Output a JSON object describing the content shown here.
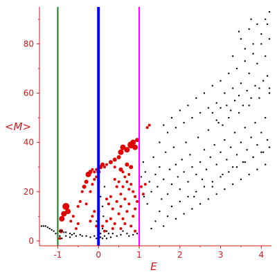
{
  "chart_data": {
    "type": "scatter",
    "title": "",
    "xlabel": "E",
    "ylabel": "<M>",
    "xlim": [
      -1.45,
      4.25
    ],
    "ylim": [
      -2,
      95
    ],
    "xticks": [
      -1,
      0,
      1,
      2,
      3,
      4
    ],
    "yticks": [
      0,
      20,
      40,
      60,
      80
    ],
    "grid": false,
    "legend": "none",
    "colors": {
      "axis": "#d01818",
      "black_points": "#000000",
      "red_points": "#e00000",
      "line_e_minus1": "#1e7a1e",
      "line_e_0": "#0000ff",
      "line_e_1": "#ff00ff"
    },
    "vertical_lines": [
      {
        "x": -1,
        "color": "#1e7a1e"
      },
      {
        "x": 0,
        "color": "#0000ff"
      },
      {
        "x": 1,
        "color": "#ff00ff"
      }
    ],
    "series": [
      {
        "color": "#e00000",
        "points": [
          [
            -0.95,
            1,
            2
          ],
          [
            -0.92,
            4,
            3
          ],
          [
            -0.9,
            9,
            4
          ],
          [
            -0.85,
            11,
            4
          ],
          [
            -0.8,
            14,
            5
          ],
          [
            -0.75,
            12,
            4
          ],
          [
            -0.68,
            8,
            2
          ],
          [
            -0.62,
            10,
            2
          ],
          [
            -0.55,
            5,
            2
          ],
          [
            -0.5,
            7,
            2
          ],
          [
            -0.5,
            14,
            2
          ],
          [
            -0.45,
            16,
            2
          ],
          [
            -0.4,
            20,
            2
          ],
          [
            -0.35,
            22,
            3
          ],
          [
            -0.3,
            24,
            3
          ],
          [
            -0.25,
            27,
            4
          ],
          [
            -0.2,
            28,
            3
          ],
          [
            -0.15,
            29,
            2
          ],
          [
            -0.1,
            28,
            2
          ],
          [
            -0.05,
            29,
            2
          ],
          [
            -0.3,
            15,
            2
          ],
          [
            -0.2,
            20,
            2
          ],
          [
            -0.15,
            23,
            2
          ],
          [
            -0.1,
            25,
            2
          ],
          [
            -0.05,
            26,
            2
          ],
          [
            -0.2,
            8,
            2
          ],
          [
            -0.15,
            10,
            2
          ],
          [
            -0.1,
            12,
            2
          ],
          [
            -0.05,
            6,
            2
          ],
          [
            0.0,
            28,
            3
          ],
          [
            0.05,
            30,
            3
          ],
          [
            0.1,
            31,
            3
          ],
          [
            0.15,
            30,
            2
          ],
          [
            0.2,
            31,
            2
          ],
          [
            0.3,
            32,
            3
          ],
          [
            0.4,
            33,
            3
          ],
          [
            0.5,
            34,
            3
          ],
          [
            0.55,
            36,
            4
          ],
          [
            0.6,
            38,
            4
          ],
          [
            0.7,
            37,
            4
          ],
          [
            0.8,
            39,
            5
          ],
          [
            0.85,
            40,
            4
          ],
          [
            0.9,
            38,
            4
          ],
          [
            0.95,
            41,
            3
          ],
          [
            0.4,
            30,
            2
          ],
          [
            0.55,
            29,
            3
          ],
          [
            0.6,
            28,
            2
          ],
          [
            0.7,
            31,
            3
          ],
          [
            0.75,
            27,
            2
          ],
          [
            0.8,
            30,
            3
          ],
          [
            0.4,
            25,
            2
          ],
          [
            0.45,
            22,
            2
          ],
          [
            0.5,
            24,
            2
          ],
          [
            0.55,
            19,
            2
          ],
          [
            0.6,
            22,
            2
          ],
          [
            0.65,
            26,
            2
          ],
          [
            0.7,
            24,
            2
          ],
          [
            0.75,
            21,
            2
          ],
          [
            0.8,
            23,
            2
          ],
          [
            0.85,
            20,
            2
          ],
          [
            0.9,
            18,
            2
          ],
          [
            0.2,
            17,
            2
          ],
          [
            0.25,
            15,
            2
          ],
          [
            0.3,
            18,
            2
          ],
          [
            0.35,
            13,
            2
          ],
          [
            0.45,
            16,
            2
          ],
          [
            0.5,
            11,
            2
          ],
          [
            0.55,
            14,
            2
          ],
          [
            0.6,
            9,
            2
          ],
          [
            0.65,
            17,
            2
          ],
          [
            0.7,
            12,
            2
          ],
          [
            0.75,
            15,
            2
          ],
          [
            0.85,
            10,
            2
          ],
          [
            0.9,
            13,
            2
          ],
          [
            0.95,
            16,
            2
          ],
          [
            0.1,
            6,
            2
          ],
          [
            0.15,
            4,
            2
          ],
          [
            0.2,
            8,
            2
          ],
          [
            0.3,
            9,
            2
          ],
          [
            0.35,
            5,
            2
          ],
          [
            0.4,
            7,
            2
          ],
          [
            0.55,
            5,
            2
          ],
          [
            0.65,
            7,
            2
          ],
          [
            0.8,
            6,
            2
          ],
          [
            0.9,
            4,
            2
          ],
          [
            1.05,
            22,
            2
          ],
          [
            1.1,
            19,
            2
          ],
          [
            1.15,
            23,
            2
          ],
          [
            1.2,
            46,
            2
          ],
          [
            1.25,
            47,
            2
          ]
        ]
      },
      {
        "color": "#000000",
        "points": [
          [
            -1.4,
            6
          ],
          [
            -1.35,
            6
          ],
          [
            -1.3,
            6
          ],
          [
            -1.25,
            5.5
          ],
          [
            -1.2,
            5
          ],
          [
            -1.15,
            4.5
          ],
          [
            -1.1,
            4
          ],
          [
            -1.05,
            3
          ],
          [
            -1.0,
            3
          ],
          [
            -0.95,
            4
          ],
          [
            -0.9,
            4
          ],
          [
            -0.85,
            3.5
          ],
          [
            -0.8,
            3.5
          ],
          [
            -0.7,
            3
          ],
          [
            -0.65,
            2.5
          ],
          [
            -0.6,
            3
          ],
          [
            -0.55,
            2
          ],
          [
            -0.45,
            2.5
          ],
          [
            -0.4,
            2
          ],
          [
            -0.3,
            2
          ],
          [
            -0.2,
            1.5
          ],
          [
            -0.1,
            2
          ],
          [
            -0.05,
            1
          ],
          [
            0.0,
            1
          ],
          [
            0.05,
            1.5
          ],
          [
            0.1,
            1
          ],
          [
            0.2,
            1
          ],
          [
            0.3,
            1.5
          ],
          [
            0.05,
            3
          ],
          [
            0.1,
            5
          ],
          [
            0.15,
            2
          ],
          [
            0.2,
            4
          ],
          [
            0.25,
            3
          ],
          [
            0.35,
            3
          ],
          [
            0.45,
            2
          ],
          [
            0.55,
            2.5
          ],
          [
            0.6,
            4
          ],
          [
            0.7,
            3
          ],
          [
            0.75,
            2
          ],
          [
            0.85,
            2.5
          ],
          [
            0.95,
            3
          ],
          [
            -0.95,
            2
          ],
          [
            -0.9,
            1
          ],
          [
            -0.8,
            2
          ],
          [
            -0.7,
            1.5
          ],
          [
            -0.05,
            8
          ],
          [
            0.02,
            12
          ],
          [
            0.05,
            18
          ],
          [
            0.1,
            14
          ],
          [
            0.15,
            22
          ],
          [
            0.02,
            24
          ],
          [
            0.12,
            10
          ],
          [
            1.05,
            26
          ],
          [
            1.1,
            32
          ],
          [
            1.12,
            18
          ],
          [
            1.15,
            28
          ],
          [
            1.2,
            15
          ],
          [
            1.25,
            24
          ],
          [
            1.3,
            20
          ],
          [
            1.35,
            34
          ],
          [
            1.4,
            27
          ],
          [
            1.45,
            22
          ],
          [
            1.5,
            30
          ],
          [
            1.55,
            17
          ],
          [
            1.6,
            25
          ],
          [
            1.65,
            36
          ],
          [
            1.7,
            19
          ],
          [
            1.75,
            29
          ],
          [
            1.8,
            23
          ],
          [
            1.85,
            38
          ],
          [
            1.9,
            31
          ],
          [
            1.95,
            26
          ],
          [
            2.0,
            21
          ],
          [
            2.05,
            33
          ],
          [
            2.1,
            28
          ],
          [
            2.15,
            40
          ],
          [
            2.2,
            24
          ],
          [
            2.25,
            35
          ],
          [
            2.3,
            30
          ],
          [
            2.35,
            18
          ],
          [
            2.4,
            27
          ],
          [
            2.45,
            42
          ],
          [
            2.5,
            32
          ],
          [
            2.55,
            25
          ],
          [
            2.6,
            37
          ],
          [
            2.65,
            29
          ],
          [
            2.7,
            45
          ],
          [
            2.75,
            34
          ],
          [
            2.8,
            22
          ],
          [
            2.85,
            39
          ],
          [
            2.9,
            31
          ],
          [
            2.95,
            48
          ],
          [
            3.0,
            36
          ],
          [
            3.05,
            27
          ],
          [
            3.1,
            41
          ],
          [
            3.15,
            33
          ],
          [
            3.2,
            50
          ],
          [
            3.25,
            38
          ],
          [
            3.3,
            30
          ],
          [
            3.35,
            44
          ],
          [
            3.4,
            35
          ],
          [
            3.45,
            52
          ],
          [
            3.5,
            40
          ],
          [
            3.55,
            32
          ],
          [
            3.6,
            46
          ],
          [
            3.65,
            37
          ],
          [
            3.7,
            55
          ],
          [
            3.75,
            42
          ],
          [
            3.8,
            34
          ],
          [
            3.85,
            48
          ],
          [
            3.9,
            39
          ],
          [
            3.95,
            58
          ],
          [
            4.0,
            44
          ],
          [
            4.05,
            36
          ],
          [
            4.1,
            50
          ],
          [
            4.15,
            41
          ],
          [
            4.2,
            60
          ],
          [
            1.5,
            40
          ],
          [
            1.7,
            44
          ],
          [
            1.9,
            46
          ],
          [
            2.1,
            48
          ],
          [
            2.3,
            50
          ],
          [
            2.5,
            52
          ],
          [
            2.7,
            54
          ],
          [
            2.9,
            56
          ],
          [
            3.1,
            60
          ],
          [
            3.3,
            62
          ],
          [
            3.5,
            64
          ],
          [
            3.7,
            68
          ],
          [
            3.9,
            72
          ],
          [
            4.1,
            75
          ],
          [
            1.6,
            47
          ],
          [
            1.8,
            50
          ],
          [
            2.0,
            53
          ],
          [
            2.2,
            55
          ],
          [
            2.4,
            58
          ],
          [
            2.6,
            60
          ],
          [
            2.8,
            63
          ],
          [
            3.0,
            65
          ],
          [
            3.2,
            68
          ],
          [
            3.4,
            70
          ],
          [
            3.6,
            73
          ],
          [
            3.8,
            76
          ],
          [
            4.0,
            80
          ],
          [
            4.2,
            82
          ],
          [
            1.3,
            5
          ],
          [
            1.4,
            8
          ],
          [
            1.5,
            12
          ],
          [
            1.6,
            6
          ],
          [
            1.7,
            10
          ],
          [
            1.8,
            14
          ],
          [
            1.9,
            9
          ],
          [
            2.0,
            16
          ],
          [
            2.1,
            11
          ],
          [
            2.2,
            18
          ],
          [
            2.3,
            13
          ],
          [
            2.4,
            20
          ],
          [
            2.5,
            15
          ],
          [
            2.6,
            22
          ],
          [
            2.7,
            17
          ],
          [
            2.8,
            24
          ],
          [
            2.9,
            19
          ],
          [
            3.0,
            26
          ],
          [
            3.1,
            21
          ],
          [
            3.2,
            28
          ],
          [
            3.3,
            23
          ],
          [
            3.4,
            30
          ],
          [
            3.5,
            25
          ],
          [
            3.6,
            32
          ],
          [
            3.7,
            27
          ],
          [
            3.8,
            34
          ],
          [
            3.9,
            29
          ],
          [
            4.0,
            36
          ],
          [
            4.1,
            31
          ],
          [
            4.2,
            38
          ],
          [
            3.3,
            75
          ],
          [
            3.5,
            82
          ],
          [
            3.6,
            78
          ],
          [
            3.7,
            86
          ],
          [
            3.8,
            80
          ],
          [
            3.9,
            88
          ],
          [
            4.0,
            84
          ],
          [
            4.1,
            90
          ],
          [
            4.2,
            93
          ],
          [
            3.45,
            85
          ],
          [
            3.75,
            90
          ],
          [
            4.15,
            88
          ],
          [
            2.8,
            52
          ],
          [
            2.9,
            49
          ],
          [
            3.0,
            54
          ],
          [
            3.05,
            47
          ],
          [
            3.15,
            55
          ],
          [
            3.25,
            53
          ],
          [
            3.35,
            57
          ],
          [
            3.45,
            59
          ],
          [
            3.55,
            55
          ],
          [
            3.65,
            61
          ],
          [
            3.75,
            58
          ],
          [
            3.85,
            63
          ],
          [
            3.95,
            62
          ],
          [
            4.05,
            65
          ],
          [
            4.15,
            67
          ],
          [
            4.2,
            62
          ]
        ]
      }
    ]
  }
}
